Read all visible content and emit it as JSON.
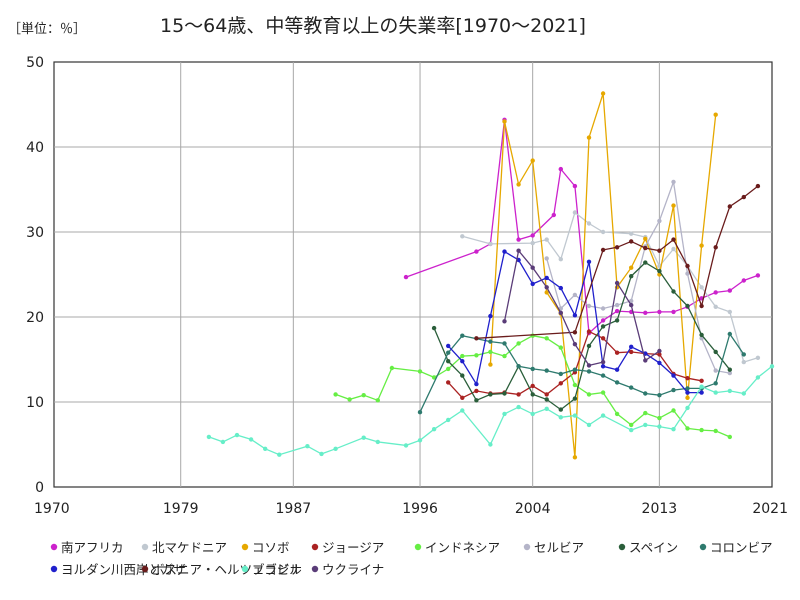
{
  "chart_data": {
    "type": "line",
    "title": "15～64歳、中等教育以上の失業率[1970～2021]",
    "unit_label": "［単位：％］",
    "xlim": [
      1970,
      2021
    ],
    "ylim": [
      0,
      50
    ],
    "x_ticks": [
      "1970",
      "1979",
      "1987",
      "1996",
      "2004",
      "2013",
      "2021"
    ],
    "y_ticks": [
      "0",
      "10",
      "20",
      "30",
      "40",
      "50"
    ],
    "grid": true,
    "legend_position": "bottom",
    "series": [
      {
        "name": "南アフリカ",
        "color": "#cc22cc",
        "points": [
          [
            1995,
            24.7
          ],
          [
            2000,
            27.7
          ],
          [
            2001,
            28.6
          ],
          [
            2002,
            43.2
          ],
          [
            2003,
            29.1
          ],
          [
            2004,
            29.6
          ],
          [
            2005.5,
            32
          ],
          [
            2006,
            37.4
          ],
          [
            2007,
            35.4
          ],
          [
            2008,
            18.1
          ],
          [
            2009,
            19.6
          ],
          [
            2010,
            20.7
          ],
          [
            2011,
            20.6
          ],
          [
            2012,
            20.5
          ],
          [
            2013,
            20.6
          ],
          [
            2014,
            20.6
          ],
          [
            2015,
            21.2
          ],
          [
            2016,
            22.2
          ],
          [
            2017,
            22.9
          ],
          [
            2018,
            23.1
          ],
          [
            2019,
            24.3
          ],
          [
            2020,
            24.9
          ]
        ]
      },
      {
        "name": "北マケドニア",
        "color": "#c0c8d0",
        "points": [
          [
            1999,
            29.5
          ],
          [
            2001,
            28.6
          ],
          [
            2004,
            28.7
          ],
          [
            2005,
            29.1
          ],
          [
            2006,
            26.8
          ],
          [
            2007,
            32.3
          ],
          [
            2008,
            31
          ],
          [
            2009,
            30
          ],
          [
            2011,
            29.8
          ],
          [
            2012,
            29.4
          ],
          [
            2013,
            26
          ],
          [
            2014,
            28
          ],
          [
            2015,
            26
          ],
          [
            2016,
            23.5
          ],
          [
            2017,
            21.2
          ],
          [
            2018,
            20.6
          ],
          [
            2019,
            14.7
          ],
          [
            2020,
            15.2
          ]
        ]
      },
      {
        "name": "コソボ",
        "color": "#e6a800",
        "points": [
          [
            2001,
            14.4
          ],
          [
            2002,
            43
          ],
          [
            2003,
            35.6
          ],
          [
            2004,
            38.4
          ],
          [
            2005,
            22.9
          ],
          [
            2006,
            20.4
          ],
          [
            2007,
            3.5
          ],
          [
            2008,
            41.1
          ],
          [
            2009,
            46.3
          ],
          [
            2010,
            23.5
          ],
          [
            2011,
            25.8
          ],
          [
            2012,
            29.2
          ],
          [
            2013,
            25
          ],
          [
            2014,
            33.1
          ],
          [
            2015,
            10.5
          ],
          [
            2016,
            28.4
          ],
          [
            2017,
            43.8
          ]
        ]
      },
      {
        "name": "ジョージア",
        "color": "#aa2222",
        "points": [
          [
            1998,
            12.3
          ],
          [
            1999,
            10.5
          ],
          [
            2000,
            11.3
          ],
          [
            2001,
            11
          ],
          [
            2002,
            11.1
          ],
          [
            2003,
            10.9
          ],
          [
            2004,
            11.9
          ],
          [
            2005,
            10.9
          ],
          [
            2006,
            12.2
          ],
          [
            2007,
            13.5
          ],
          [
            2008,
            18.3
          ],
          [
            2009,
            17.5
          ],
          [
            2010,
            15.8
          ],
          [
            2011,
            15.9
          ],
          [
            2012,
            15.7
          ],
          [
            2013,
            15.6
          ],
          [
            2014,
            13.3
          ],
          [
            2015,
            12.8
          ],
          [
            2016,
            12.5
          ]
        ]
      },
      {
        "name": "インドネシア",
        "color": "#66ee44",
        "points": [
          [
            1990,
            10.9
          ],
          [
            1991,
            10.3
          ],
          [
            1992,
            10.8
          ],
          [
            1993,
            10.2
          ],
          [
            1994,
            14
          ],
          [
            1996,
            13.6
          ],
          [
            1997,
            12.9
          ],
          [
            1998,
            13.9
          ],
          [
            1999,
            15.4
          ],
          [
            2000,
            15.5
          ],
          [
            2001,
            15.9
          ],
          [
            2002,
            15.4
          ],
          [
            2003,
            16.9
          ],
          [
            2004,
            17.8
          ],
          [
            2005,
            17.5
          ],
          [
            2006,
            16.4
          ],
          [
            2007,
            12
          ],
          [
            2008,
            10.9
          ],
          [
            2009,
            11.1
          ],
          [
            2010,
            8.6
          ],
          [
            2011,
            7.3
          ],
          [
            2012,
            8.7
          ],
          [
            2013,
            8.1
          ],
          [
            2014,
            9
          ],
          [
            2015,
            6.9
          ],
          [
            2016,
            6.7
          ],
          [
            2017,
            6.6
          ],
          [
            2018,
            5.9
          ]
        ]
      },
      {
        "name": "セルビア",
        "color": "#b4b4c8",
        "points": [
          [
            2005,
            26.9
          ],
          [
            2006,
            21
          ],
          [
            2007,
            22.6
          ],
          [
            2008,
            21.3
          ],
          [
            2009,
            21
          ],
          [
            2010,
            21.4
          ],
          [
            2011,
            21.9
          ],
          [
            2012,
            28.3
          ],
          [
            2013,
            31.3
          ],
          [
            2014,
            35.9
          ],
          [
            2015,
            25.1
          ],
          [
            2016,
            17.5
          ],
          [
            2017,
            13.7
          ],
          [
            2018,
            13.4
          ]
        ]
      },
      {
        "name": "スペイン",
        "color": "#2a5e3a",
        "points": [
          [
            1997,
            18.7
          ],
          [
            1998,
            14.8
          ],
          [
            1999,
            13.1
          ],
          [
            2000,
            10.2
          ],
          [
            2001,
            10.9
          ],
          [
            2002,
            11
          ],
          [
            2003,
            14.2
          ],
          [
            2004,
            10.9
          ],
          [
            2005,
            10.3
          ],
          [
            2006,
            9.1
          ],
          [
            2007,
            10.4
          ],
          [
            2008,
            16.6
          ],
          [
            2009,
            18.9
          ],
          [
            2010,
            19.6
          ],
          [
            2011,
            24.8
          ],
          [
            2012,
            26.4
          ],
          [
            2013,
            25.4
          ],
          [
            2014,
            23
          ],
          [
            2015,
            21.3
          ],
          [
            2016,
            17.9
          ],
          [
            2017,
            15.9
          ],
          [
            2018,
            13.8
          ]
        ]
      },
      {
        "name": "コロンビア",
        "color": "#2e7a6e",
        "points": [
          [
            1996,
            8.8
          ],
          [
            1998,
            15.8
          ],
          [
            1999,
            17.8
          ],
          [
            2001,
            17.1
          ],
          [
            2002,
            16.9
          ],
          [
            2003,
            14.2
          ],
          [
            2004,
            13.9
          ],
          [
            2005,
            13.7
          ],
          [
            2006,
            13.3
          ],
          [
            2007,
            13.8
          ],
          [
            2008,
            13.6
          ],
          [
            2009,
            13.1
          ],
          [
            2010,
            12.3
          ],
          [
            2011,
            11.7
          ],
          [
            2012,
            11
          ],
          [
            2013,
            10.8
          ],
          [
            2014,
            11.4
          ],
          [
            2015,
            11.6
          ],
          [
            2016,
            11.6
          ],
          [
            2017,
            12.2
          ],
          [
            2018,
            18
          ],
          [
            2019,
            15.6
          ]
        ]
      },
      {
        "name": "ヨルダン川西岸とガザ",
        "color": "#2020cc",
        "points": [
          [
            1998,
            16.6
          ],
          [
            1999,
            14.8
          ],
          [
            2000,
            12.1
          ],
          [
            2001,
            20.1
          ],
          [
            2002,
            27.7
          ],
          [
            2003,
            26.7
          ],
          [
            2004,
            23.9
          ],
          [
            2005,
            24.6
          ],
          [
            2006,
            23.4
          ],
          [
            2007,
            20.2
          ],
          [
            2008,
            26.5
          ],
          [
            2009,
            14.2
          ],
          [
            2010,
            13.8
          ],
          [
            2011,
            16.5
          ],
          [
            2012,
            15.7
          ],
          [
            2013,
            14.6
          ],
          [
            2014,
            13.1
          ],
          [
            2015,
            11.1
          ],
          [
            2016,
            11.1
          ]
        ]
      },
      {
        "name": "ボスニア・ヘルツェゴビナ",
        "color": "#6a1c1c",
        "points": [
          [
            2000,
            17.5
          ],
          [
            2007,
            18.2
          ],
          [
            2009,
            27.9
          ],
          [
            2010,
            28.2
          ],
          [
            2011,
            28.9
          ],
          [
            2012,
            28.1
          ],
          [
            2013,
            27.8
          ],
          [
            2014,
            29.1
          ],
          [
            2015,
            26
          ],
          [
            2016,
            21.3
          ],
          [
            2017,
            28.2
          ],
          [
            2018,
            33
          ],
          [
            2019,
            34.1
          ],
          [
            2020,
            35.4
          ]
        ]
      },
      {
        "name": "ブラジル",
        "color": "#66eec8",
        "points": [
          [
            1981,
            5.9
          ],
          [
            1982,
            5.3
          ],
          [
            1983,
            6.1
          ],
          [
            1984,
            5.6
          ],
          [
            1985,
            4.5
          ],
          [
            1986,
            3.8
          ],
          [
            1988,
            4.8
          ],
          [
            1989,
            3.9
          ],
          [
            1990,
            4.5
          ],
          [
            1992,
            5.8
          ],
          [
            1993,
            5.3
          ],
          [
            1995,
            4.9
          ],
          [
            1996,
            5.5
          ],
          [
            1997,
            6.8
          ],
          [
            1998,
            7.9
          ],
          [
            1999,
            9
          ],
          [
            2001,
            5
          ],
          [
            2002,
            8.6
          ],
          [
            2003,
            9.4
          ],
          [
            2004,
            8.6
          ],
          [
            2005,
            9.2
          ],
          [
            2006,
            8.2
          ],
          [
            2007,
            8.4
          ],
          [
            2008,
            7.3
          ],
          [
            2009,
            8.4
          ],
          [
            2011,
            6.7
          ],
          [
            2012,
            7.3
          ],
          [
            2013,
            7.1
          ],
          [
            2014,
            6.8
          ],
          [
            2015,
            9.3
          ],
          [
            2016,
            11.8
          ],
          [
            2017,
            11.1
          ],
          [
            2018,
            11.3
          ],
          [
            2019,
            11
          ],
          [
            2020,
            12.9
          ],
          [
            2021,
            14.2
          ]
        ]
      },
      {
        "name": "ウクライナ",
        "color": "#5a3c78",
        "points": [
          [
            2002,
            19.5
          ],
          [
            2003,
            27.8
          ],
          [
            2004,
            25.8
          ],
          [
            2005,
            23.5
          ],
          [
            2006,
            20.5
          ],
          [
            2007,
            16.8
          ],
          [
            2008,
            14.3
          ],
          [
            2009,
            14.7
          ],
          [
            2010,
            24
          ],
          [
            2011,
            21.4
          ],
          [
            2012,
            14.9
          ],
          [
            2013,
            16
          ]
        ]
      }
    ]
  }
}
